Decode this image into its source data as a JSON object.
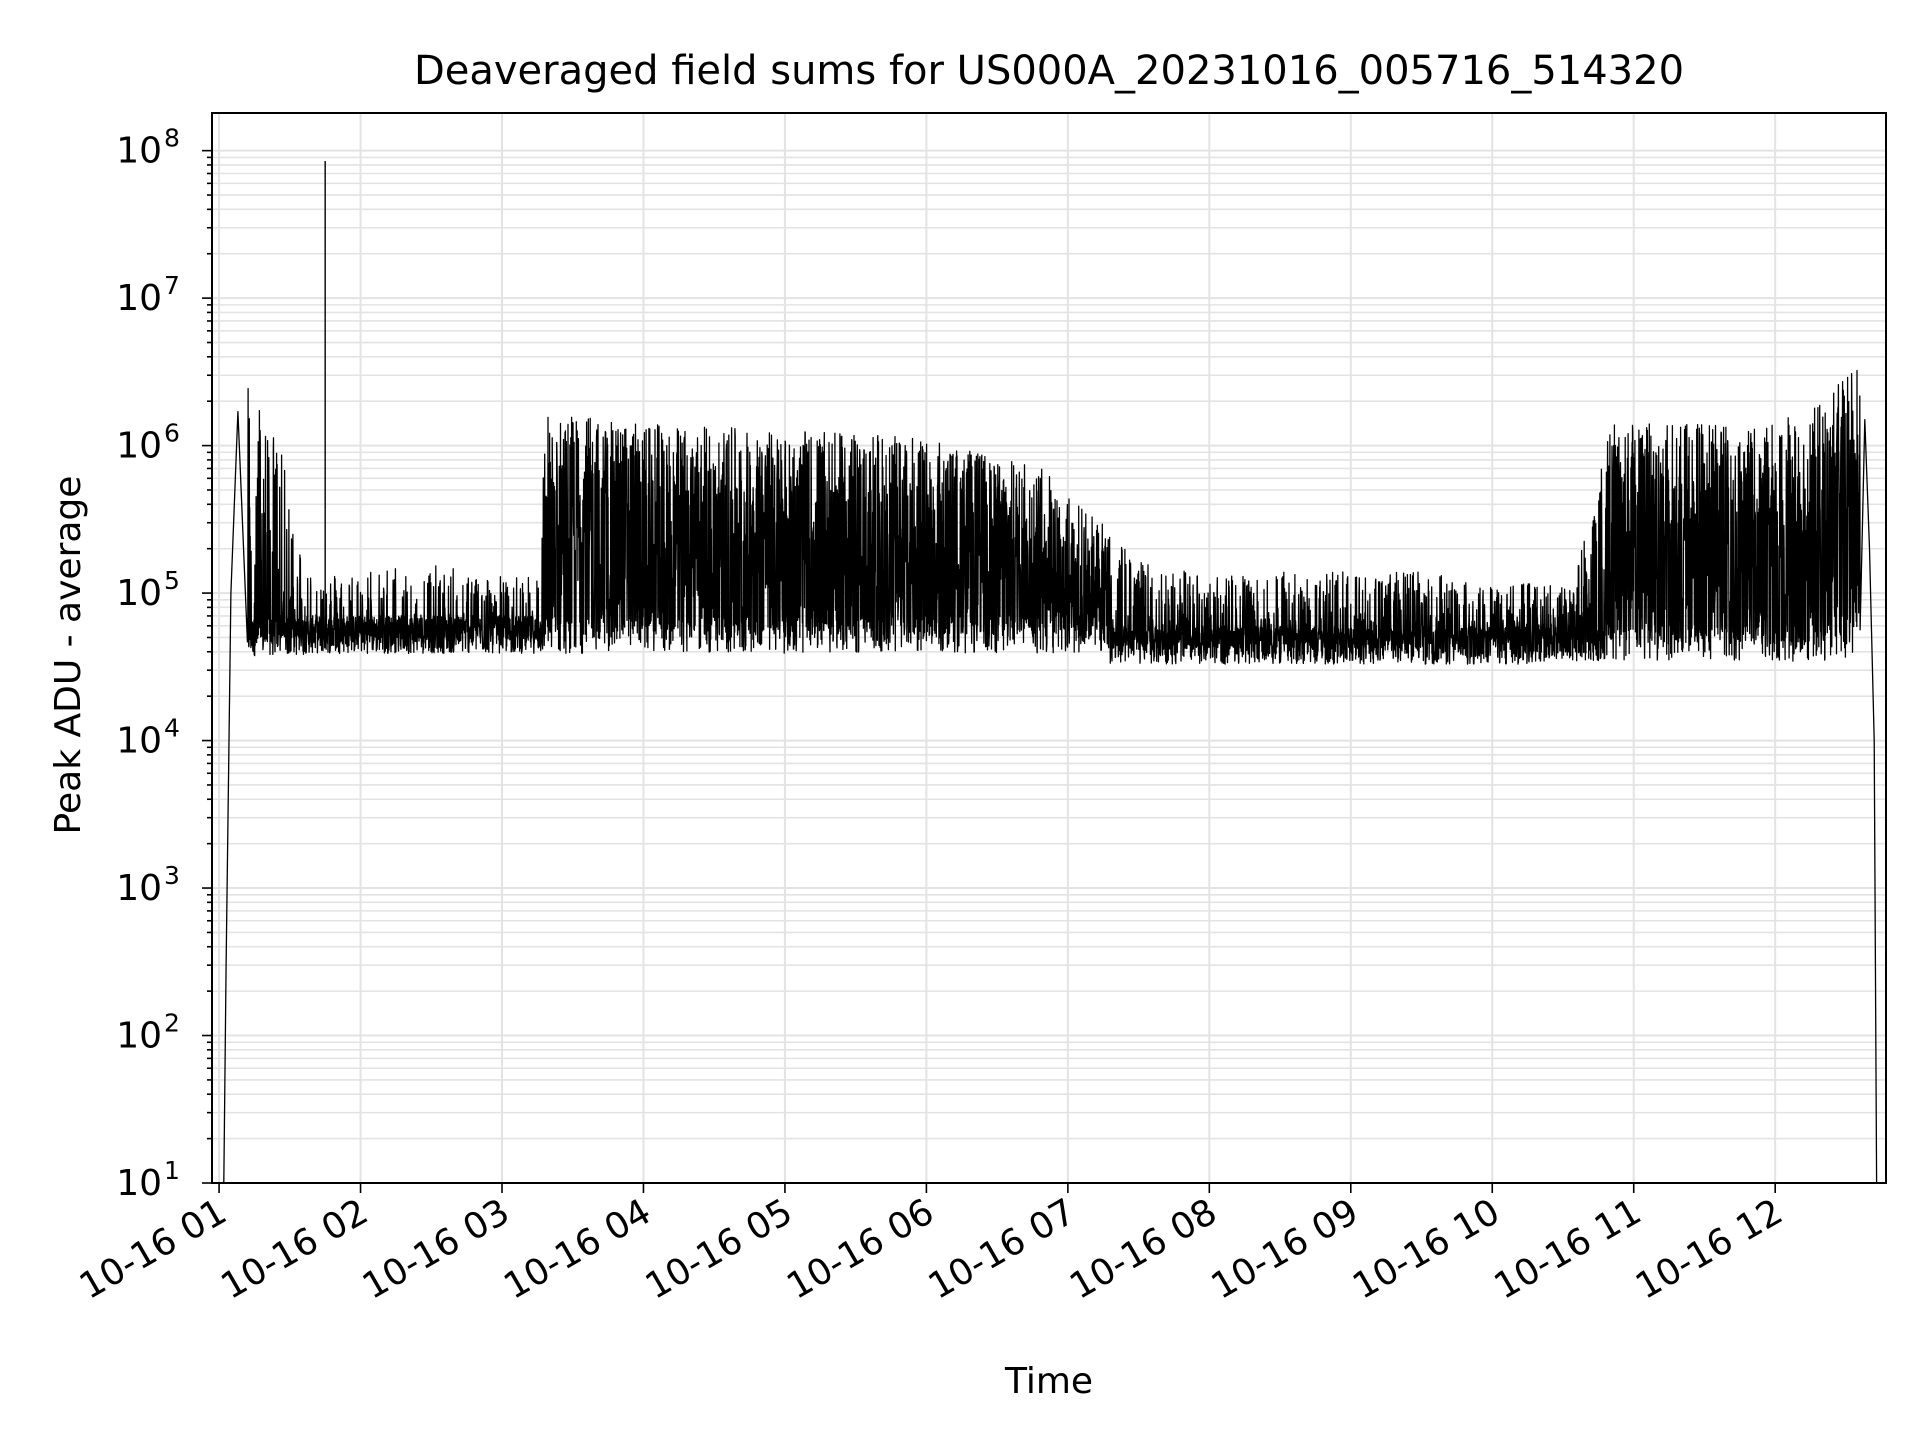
{
  "chart_data": {
    "type": "line",
    "title": "Deaveraged field sums for US000A_20231016_005716_514320",
    "xlabel": "Time",
    "ylabel": "Peak ADU - average",
    "y_scale": "log",
    "ylim": [
      10,
      180000000
    ],
    "xlim": [
      "2023-10-16 00:57",
      "2023-10-16 12:47"
    ],
    "grid": "both (major and minor), light gray",
    "legend": "none",
    "x_tick_labels": [
      "10-16 01",
      "10-16 02",
      "10-16 03",
      "10-16 04",
      "10-16 05",
      "10-16 06",
      "10-16 07",
      "10-16 08",
      "10-16 09",
      "10-16 10",
      "10-16 11",
      "10-16 12"
    ],
    "y_tick_labels": [
      {
        "value": 10,
        "base": "10",
        "exp": "1"
      },
      {
        "value": 100,
        "base": "10",
        "exp": "2"
      },
      {
        "value": 1000,
        "base": "10",
        "exp": "3"
      },
      {
        "value": 10000,
        "base": "10",
        "exp": "4"
      },
      {
        "value": 100000,
        "base": "10",
        "exp": "5"
      },
      {
        "value": 1000000,
        "base": "10",
        "exp": "6"
      },
      {
        "value": 10000000,
        "base": "10",
        "exp": "7"
      },
      {
        "value": 100000000,
        "base": "10",
        "exp": "8"
      }
    ],
    "line_color": "#000000",
    "series": [
      {
        "values_note": "",
        "x": [
          "2023-10-16 01:02",
          "2023-10-16 01:03",
          "2023-10-16 01:05",
          "2023-10-16 01:08",
          "2023-10-16 01:12",
          "2023-10-16 01:18",
          "2023-10-16 01:25",
          "2023-10-16 01:31",
          "2023-10-16 01:36",
          "2023-10-16 01:42",
          "2023-10-16 01:45",
          "2023-10-16 01:45",
          "2023-10-16 01:46",
          "2023-10-16 01:55",
          "2023-10-16 02:10",
          "2023-10-16 02:30",
          "2023-10-16 02:50",
          "2023-10-16 03:10",
          "2023-10-16 03:16",
          "2023-10-16 03:18",
          "2023-10-16 04:00",
          "2023-10-16 05:00",
          "2023-10-16 06:00",
          "2023-10-16 06:50",
          "2023-10-16 07:30",
          "2023-10-16 08:00",
          "2023-10-16 08:30",
          "2023-10-16 09:00",
          "2023-10-16 09:30",
          "2023-10-16 10:00",
          "2023-10-16 10:35",
          "2023-10-16 10:50",
          "2023-10-16 11:00",
          "2023-10-16 11:30",
          "2023-10-16 12:00",
          "2023-10-16 12:20",
          "2023-10-16 12:35",
          "2023-10-16 12:38",
          "2023-10-16 12:40",
          "2023-10-16 12:42",
          "2023-10-16 12:43"
        ],
        "y": [
          10,
          300,
          100000,
          1700000,
          1500000,
          700000,
          400000,
          150000,
          60000,
          50000,
          55000,
          85000000,
          50000,
          50000,
          55000,
          55000,
          50000,
          45000,
          50000,
          600000,
          500000,
          450000,
          400000,
          250000,
          60000,
          45000,
          50000,
          50000,
          50000,
          40000,
          45000,
          500000,
          500000,
          500000,
          500000,
          700000,
          1300000,
          1500000,
          200000,
          10000,
          10
        ]
      }
    ]
  }
}
